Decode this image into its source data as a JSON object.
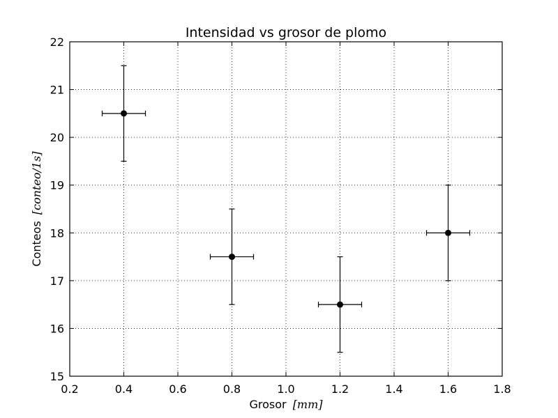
{
  "chart_data": {
    "type": "scatter",
    "title": "Intensidad vs grosor de plomo",
    "xlabel": {
      "text": "Grosor",
      "unit": "[mm]"
    },
    "ylabel": {
      "text": "Conteos",
      "unit": "[conteo/1s]"
    },
    "xlim": [
      0.2,
      1.8
    ],
    "ylim": [
      15,
      22
    ],
    "xticks": [
      "0.2",
      "0.4",
      "0.6",
      "0.8",
      "1.0",
      "1.2",
      "1.4",
      "1.6",
      "1.8"
    ],
    "yticks": [
      "15",
      "16",
      "17",
      "18",
      "19",
      "20",
      "21",
      "22"
    ],
    "grid": true,
    "marker_color": "#000000",
    "points": [
      {
        "x": 0.4,
        "y": 20.5,
        "xerr": 0.08,
        "yerr": 1.0
      },
      {
        "x": 0.8,
        "y": 17.5,
        "xerr": 0.08,
        "yerr": 1.0
      },
      {
        "x": 1.2,
        "y": 16.5,
        "xerr": 0.08,
        "yerr": 1.0
      },
      {
        "x": 1.6,
        "y": 18.0,
        "xerr": 0.08,
        "yerr": 1.0
      }
    ]
  }
}
